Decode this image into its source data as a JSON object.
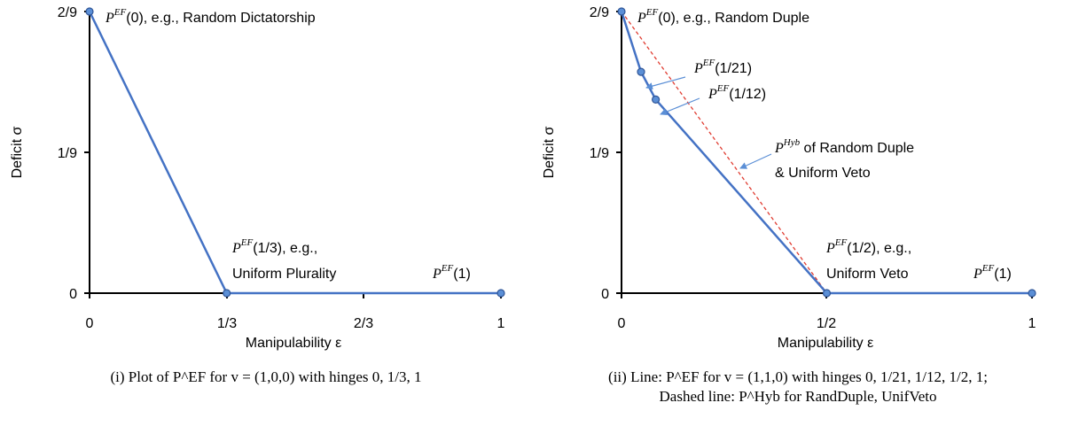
{
  "chart_data": [
    {
      "type": "line",
      "xlabel": "Manipulability ε",
      "ylabel": "Deficit σ",
      "xlim": [
        0,
        1
      ],
      "ylim": [
        0,
        0.2222222
      ],
      "xticks": [
        0,
        0.3333333,
        0.6666667,
        1
      ],
      "xtick_labels": [
        "0",
        "1/3",
        "2/3",
        "1"
      ],
      "yticks": [
        0,
        0.1111111,
        0.2222222
      ],
      "ytick_labels": [
        "0",
        "1/9",
        "2/9"
      ],
      "series": [
        {
          "style": "solid",
          "color": "#4472c4",
          "x": [
            0,
            0.3333333,
            1
          ],
          "y": [
            0.2222222,
            0,
            0
          ],
          "markers": true
        }
      ],
      "annotations": [
        {
          "sup": "EF",
          "arg": "(0), e.g., Random Dictatorship",
          "line2": ""
        },
        {
          "sup": "EF",
          "arg": "(1/3), e.g.,",
          "line2": "Uniform Plurality"
        },
        {
          "sup": "EF",
          "arg": "(1)",
          "line2": ""
        }
      ],
      "caption": "(i) Plot of P^EF for v = (1,0,0) with hinges 0, 1/3, 1"
    },
    {
      "type": "line",
      "xlabel": "Manipulability ε",
      "ylabel": "Deficit σ",
      "xlim": [
        0,
        1
      ],
      "ylim": [
        0,
        0.2222222
      ],
      "xticks": [
        0,
        0.5,
        1
      ],
      "xtick_labels": [
        "0",
        "1/2",
        "1"
      ],
      "yticks": [
        0,
        0.1111111,
        0.2222222
      ],
      "ytick_labels": [
        "0",
        "1/9",
        "2/9"
      ],
      "series": [
        {
          "style": "solid",
          "color": "#4472c4",
          "x": [
            0,
            0.047619,
            0.083333,
            0.5,
            1
          ],
          "y": [
            0.2222222,
            0.1746032,
            0.1527778,
            0,
            0
          ],
          "markers": true
        },
        {
          "style": "dashed",
          "color": "#e03c31",
          "x": [
            0,
            0.5
          ],
          "y": [
            0.2222222,
            0
          ]
        }
      ],
      "annotations": [
        {
          "sup": "EF",
          "arg": "(0), e.g., Random Duple",
          "line2": ""
        },
        {
          "sup": "EF",
          "arg": "(1/21)",
          "line2": ""
        },
        {
          "sup": "EF",
          "arg": "(1/12)",
          "line2": ""
        },
        {
          "sup": "Hyb",
          "arg": " of Random Duple",
          "line2": "& Uniform Veto"
        },
        {
          "sup": "EF",
          "arg": "(1/2), e.g.,",
          "line2": "Uniform Veto"
        },
        {
          "sup": "EF",
          "arg": "(1)",
          "line2": ""
        }
      ],
      "caption_line1": "(ii) Line: P^EF for v = (1,1,0) with hinges 0, 1/21, 1/12, 1/2, 1;",
      "caption_line2": "Dashed line: P^Hyb for RandDuple, UnifVeto"
    }
  ]
}
